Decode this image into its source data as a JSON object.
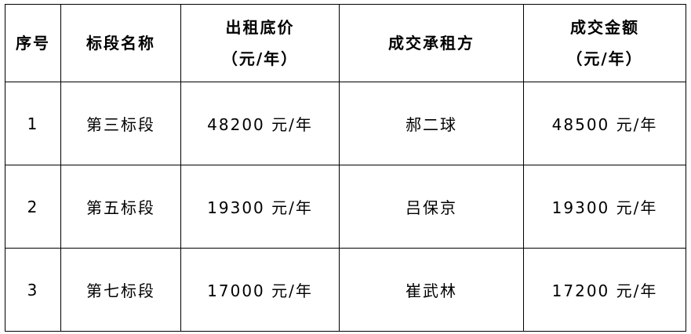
{
  "table": {
    "headers": [
      {
        "line1": "序号",
        "line2": ""
      },
      {
        "line1": "标段名称",
        "line2": ""
      },
      {
        "line1": "出租底价",
        "line2": "（元/年）"
      },
      {
        "line1": "成交承租方",
        "line2": ""
      },
      {
        "line1": "成交金额",
        "line2": "（元/年）"
      }
    ],
    "rows": [
      [
        "1",
        "第三标段",
        "48200 元/年",
        "郝二球",
        "48500 元/年"
      ],
      [
        "2",
        "第五标段",
        "19300 元/年",
        "吕保京",
        "19300 元/年"
      ],
      [
        "3",
        "第七标段",
        "17000 元/年",
        "崔武林",
        "17200 元/年"
      ]
    ]
  }
}
